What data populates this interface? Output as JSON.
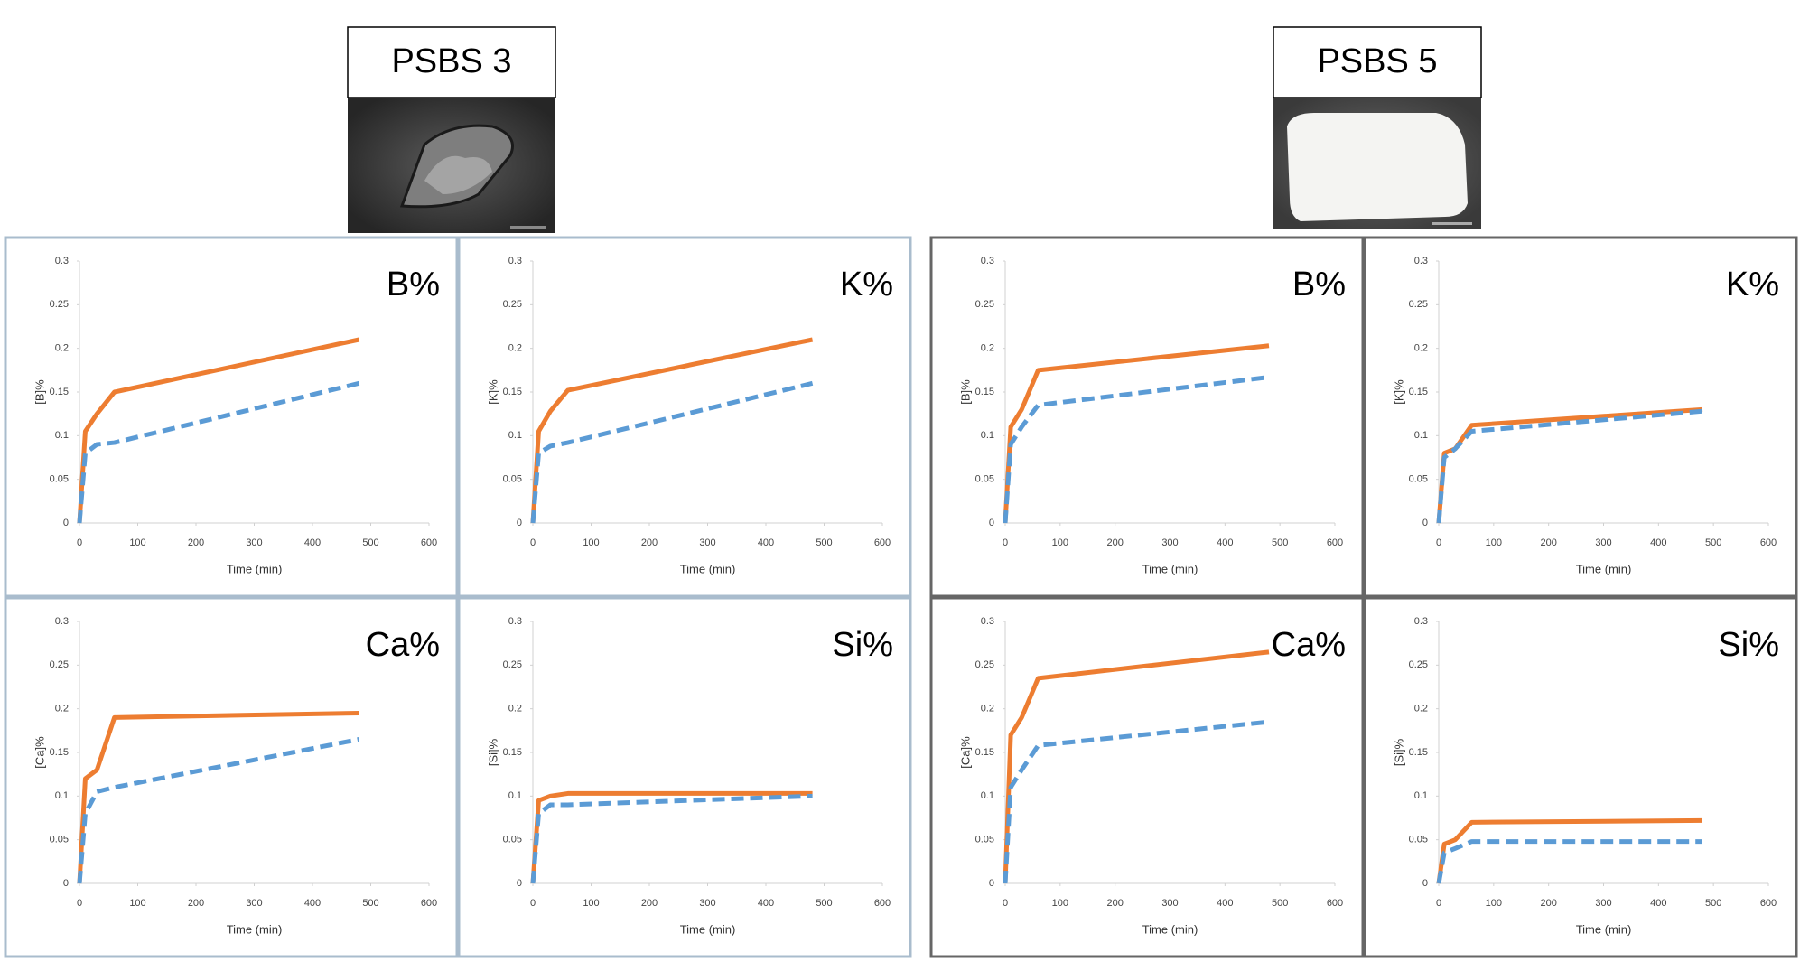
{
  "panels": [
    {
      "label": "PSBS 3"
    },
    {
      "label": "PSBS 5"
    }
  ],
  "chart_data": [
    {
      "type": "line",
      "title": "B%",
      "y_label": "[B]%",
      "x_label": "Time (min)",
      "x": [
        0,
        10,
        30,
        60,
        480
      ],
      "xlim": [
        0,
        600
      ],
      "xticks": [
        0,
        100,
        200,
        300,
        400,
        500,
        600
      ],
      "ylim": [
        0,
        0.3
      ],
      "yticks": [
        0,
        0.05,
        0.1,
        0.15,
        0.2,
        0.25,
        0.3
      ],
      "series": [
        {
          "color": "#ed7d31",
          "style": "solid",
          "values": [
            0,
            0.105,
            0.125,
            0.15,
            0.21
          ]
        },
        {
          "color": "#5b9bd5",
          "style": "dashed",
          "values": [
            0,
            0.08,
            0.09,
            0.092,
            0.16
          ]
        }
      ]
    },
    {
      "type": "line",
      "title": "K%",
      "y_label": "[K]%",
      "x_label": "Time (min)",
      "x": [
        0,
        10,
        30,
        60,
        480
      ],
      "xlim": [
        0,
        600
      ],
      "xticks": [
        0,
        100,
        200,
        300,
        400,
        500,
        600
      ],
      "ylim": [
        0,
        0.3
      ],
      "yticks": [
        0,
        0.05,
        0.1,
        0.15,
        0.2,
        0.25,
        0.3
      ],
      "series": [
        {
          "color": "#ed7d31",
          "style": "solid",
          "values": [
            0,
            0.105,
            0.128,
            0.152,
            0.21
          ]
        },
        {
          "color": "#5b9bd5",
          "style": "dashed",
          "values": [
            0,
            0.08,
            0.088,
            0.092,
            0.16
          ]
        }
      ]
    },
    {
      "type": "line",
      "title": "Ca%",
      "y_label": "[Ca]%",
      "x_label": "Time (min)",
      "x": [
        0,
        10,
        30,
        60,
        480
      ],
      "xlim": [
        0,
        600
      ],
      "xticks": [
        0,
        100,
        200,
        300,
        400,
        500,
        600
      ],
      "ylim": [
        0,
        0.3
      ],
      "yticks": [
        0,
        0.05,
        0.1,
        0.15,
        0.2,
        0.25,
        0.3
      ],
      "series": [
        {
          "color": "#ed7d31",
          "style": "solid",
          "values": [
            0,
            0.12,
            0.13,
            0.19,
            0.195
          ]
        },
        {
          "color": "#5b9bd5",
          "style": "dashed",
          "values": [
            0,
            0.08,
            0.105,
            0.11,
            0.165
          ]
        }
      ]
    },
    {
      "type": "line",
      "title": "Si%",
      "y_label": "[Si]%",
      "x_label": "Time (min)",
      "x": [
        0,
        10,
        30,
        60,
        480
      ],
      "xlim": [
        0,
        600
      ],
      "xticks": [
        0,
        100,
        200,
        300,
        400,
        500,
        600
      ],
      "ylim": [
        0,
        0.3
      ],
      "yticks": [
        0,
        0.05,
        0.1,
        0.15,
        0.2,
        0.25,
        0.3
      ],
      "series": [
        {
          "color": "#ed7d31",
          "style": "solid",
          "values": [
            0,
            0.095,
            0.1,
            0.103,
            0.103
          ]
        },
        {
          "color": "#5b9bd5",
          "style": "dashed",
          "values": [
            0,
            0.08,
            0.09,
            0.09,
            0.1
          ]
        }
      ]
    },
    {
      "type": "line",
      "title": "B%",
      "y_label": "[B]%",
      "x_label": "Time (min)",
      "x": [
        0,
        10,
        30,
        60,
        480
      ],
      "xlim": [
        0,
        600
      ],
      "xticks": [
        0,
        100,
        200,
        300,
        400,
        500,
        600
      ],
      "ylim": [
        0,
        0.3
      ],
      "yticks": [
        0,
        0.05,
        0.1,
        0.15,
        0.2,
        0.25,
        0.3
      ],
      "series": [
        {
          "color": "#ed7d31",
          "style": "solid",
          "values": [
            0,
            0.11,
            0.13,
            0.175,
            0.203
          ]
        },
        {
          "color": "#5b9bd5",
          "style": "dashed",
          "values": [
            0,
            0.09,
            0.11,
            0.135,
            0.167
          ]
        }
      ]
    },
    {
      "type": "line",
      "title": "K%",
      "y_label": "[K]%",
      "x_label": "Time (min)",
      "x": [
        0,
        10,
        30,
        60,
        480
      ],
      "xlim": [
        0,
        600
      ],
      "xticks": [
        0,
        100,
        200,
        300,
        400,
        500,
        600
      ],
      "ylim": [
        0,
        0.3
      ],
      "yticks": [
        0,
        0.05,
        0.1,
        0.15,
        0.2,
        0.25,
        0.3
      ],
      "series": [
        {
          "color": "#ed7d31",
          "style": "solid",
          "values": [
            0,
            0.08,
            0.085,
            0.112,
            0.13
          ]
        },
        {
          "color": "#5b9bd5",
          "style": "dashed",
          "values": [
            0,
            0.075,
            0.085,
            0.105,
            0.128
          ]
        }
      ]
    },
    {
      "type": "line",
      "title": "Ca%",
      "y_label": "[Ca]%",
      "x_label": "Time (min)",
      "x": [
        0,
        10,
        30,
        60,
        480
      ],
      "xlim": [
        0,
        600
      ],
      "xticks": [
        0,
        100,
        200,
        300,
        400,
        500,
        600
      ],
      "ylim": [
        0,
        0.3
      ],
      "yticks": [
        0,
        0.05,
        0.1,
        0.15,
        0.2,
        0.25,
        0.3
      ],
      "series": [
        {
          "color": "#ed7d31",
          "style": "solid",
          "values": [
            0,
            0.17,
            0.19,
            0.235,
            0.265
          ]
        },
        {
          "color": "#5b9bd5",
          "style": "dashed",
          "values": [
            0,
            0.11,
            0.13,
            0.158,
            0.185
          ]
        }
      ]
    },
    {
      "type": "line",
      "title": "Si%",
      "y_label": "[Si]%",
      "x_label": "Time (min)",
      "x": [
        0,
        10,
        30,
        60,
        480
      ],
      "xlim": [
        0,
        600
      ],
      "xticks": [
        0,
        100,
        200,
        300,
        400,
        500,
        600
      ],
      "ylim": [
        0,
        0.3
      ],
      "yticks": [
        0,
        0.05,
        0.1,
        0.15,
        0.2,
        0.25,
        0.3
      ],
      "series": [
        {
          "color": "#ed7d31",
          "style": "solid",
          "values": [
            0,
            0.045,
            0.05,
            0.07,
            0.072
          ]
        },
        {
          "color": "#5b9bd5",
          "style": "dashed",
          "values": [
            0,
            0.035,
            0.04,
            0.048,
            0.048
          ]
        }
      ]
    }
  ]
}
